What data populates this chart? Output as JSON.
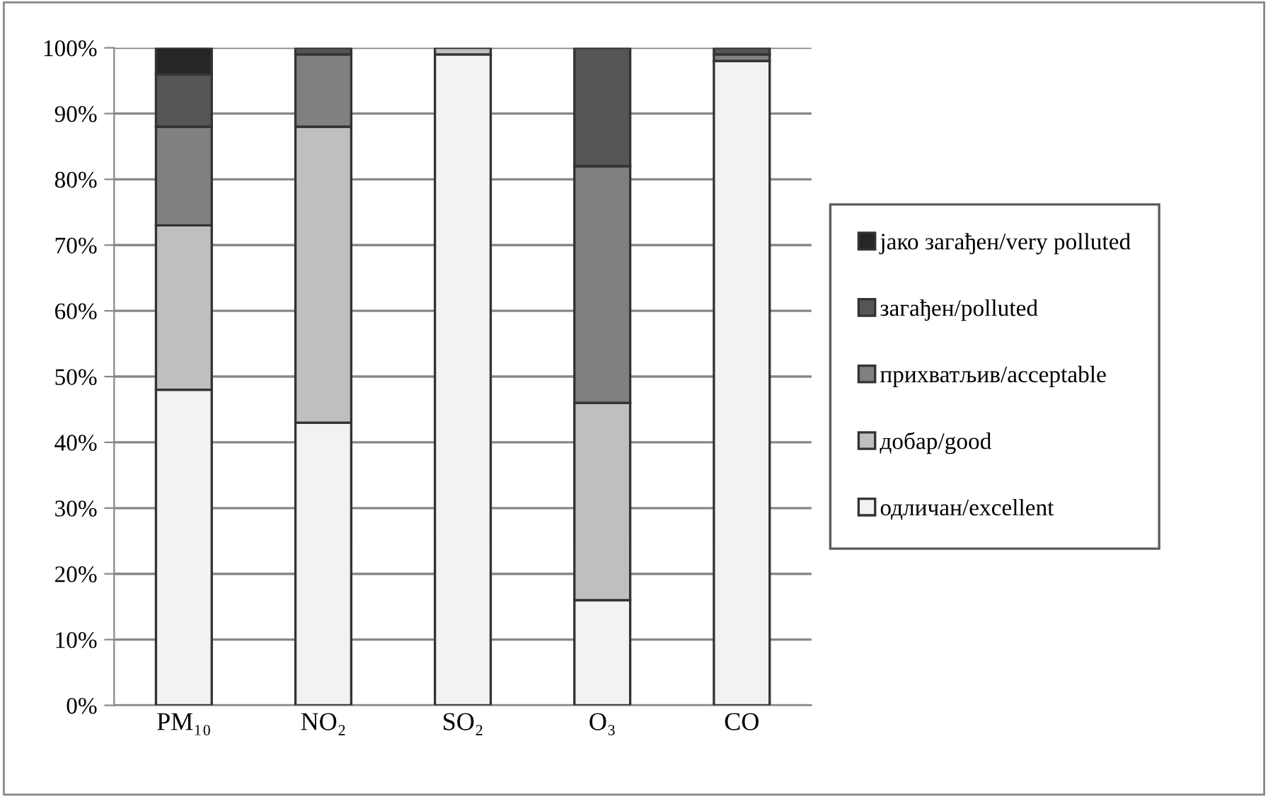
{
  "chart_data": {
    "type": "bar",
    "stacked": true,
    "categories": [
      "PM₁₀",
      "NO₂",
      "SO₂",
      "O₃",
      "CO"
    ],
    "series": [
      {
        "name": "одличан/excellent",
        "color": "#f2f2f2",
        "values": [
          48,
          43,
          99,
          16,
          98
        ]
      },
      {
        "name": "добар/good",
        "color": "#bfbfbf",
        "values": [
          25,
          45,
          1,
          30,
          0
        ]
      },
      {
        "name": "прихватљив/acceptable",
        "color": "#808080",
        "values": [
          15,
          11,
          0,
          36,
          1
        ]
      },
      {
        "name": "загађен/polluted",
        "color": "#555555",
        "values": [
          8,
          1,
          0,
          18,
          1
        ]
      },
      {
        "name": "јако загађен/very polluted",
        "color": "#262626",
        "values": [
          4,
          0,
          0,
          0,
          0
        ]
      }
    ],
    "ylim": [
      0,
      100
    ],
    "yticks": [
      {
        "value": 0,
        "label": "0%"
      },
      {
        "value": 10,
        "label": "10%"
      },
      {
        "value": 20,
        "label": "20%"
      },
      {
        "value": 30,
        "label": "30%"
      },
      {
        "value": 40,
        "label": "40%"
      },
      {
        "value": 50,
        "label": "50%"
      },
      {
        "value": 60,
        "label": "60%"
      },
      {
        "value": 70,
        "label": "70%"
      },
      {
        "value": 80,
        "label": "80%"
      },
      {
        "value": 90,
        "label": "90%"
      },
      {
        "value": 100,
        "label": "100%"
      }
    ],
    "grid": "y",
    "legend": "right"
  }
}
